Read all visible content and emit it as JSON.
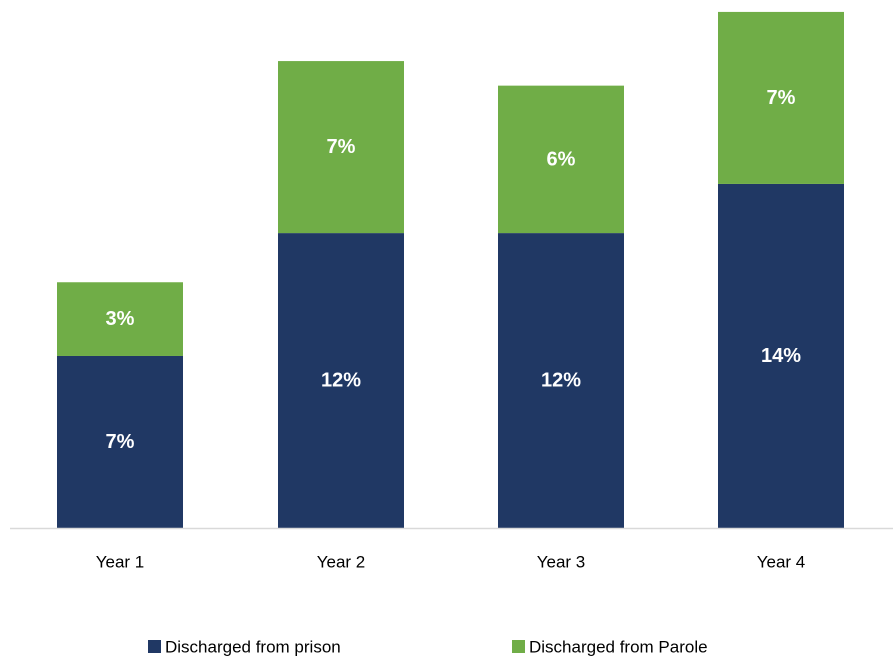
{
  "chart_data": {
    "type": "bar",
    "stacked": true,
    "categories": [
      "Year 1",
      "Year 2",
      "Year 3",
      "Year 4"
    ],
    "series": [
      {
        "name": "Discharged from prison",
        "values": [
          7,
          12,
          12,
          14
        ],
        "labels": [
          "7%",
          "12%",
          "12%",
          "14%"
        ],
        "color": "#203864"
      },
      {
        "name": "Discharged from Parole",
        "values": [
          3,
          7,
          6,
          7
        ],
        "labels": [
          "3%",
          "7%",
          "6%",
          "7%"
        ],
        "color": "#70ad47"
      }
    ],
    "ylim": [
      0,
      21.2
    ],
    "grid": false,
    "legend_position": "bottom"
  }
}
